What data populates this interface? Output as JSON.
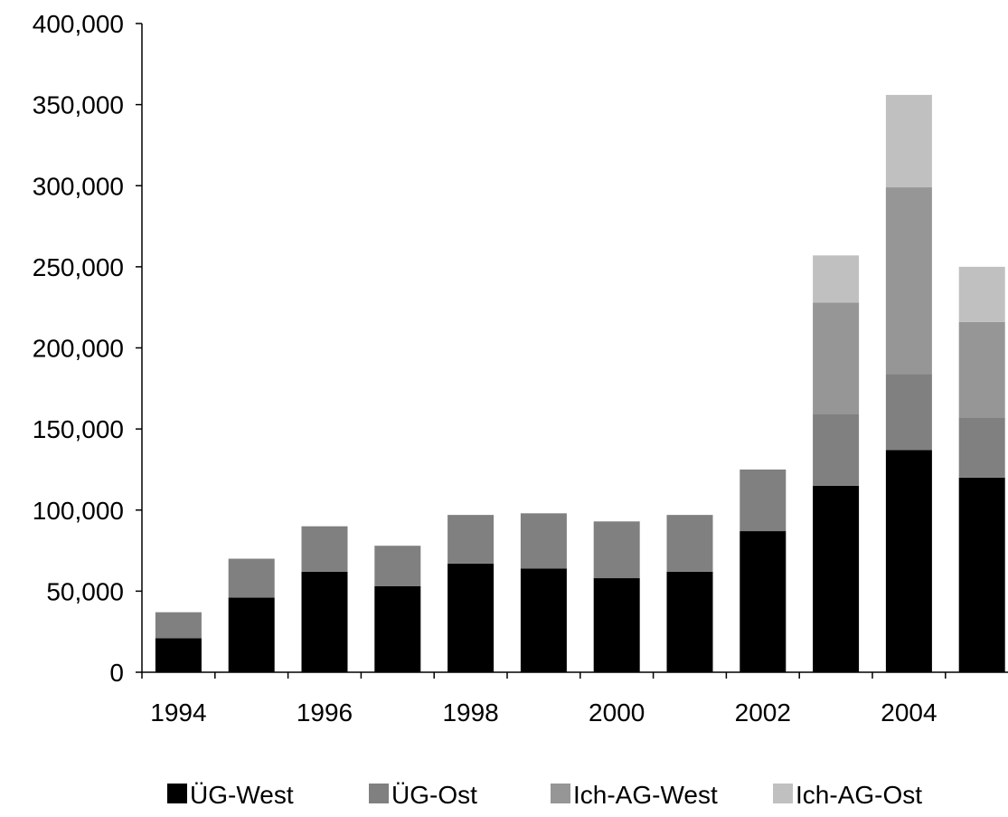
{
  "chart_data": {
    "type": "bar",
    "stacked": true,
    "title": "",
    "xlabel": "",
    "ylabel": "",
    "ylim": [
      0,
      400000
    ],
    "y_ticks": [
      0,
      50000,
      100000,
      150000,
      200000,
      250000,
      300000,
      350000,
      400000
    ],
    "y_tick_labels": [
      "0",
      "50,000",
      "100,000",
      "150,000",
      "200,000",
      "250,000",
      "300,000",
      "350,000",
      "400,000"
    ],
    "categories": [
      "1994",
      "1995",
      "1996",
      "1997",
      "1998",
      "1999",
      "2000",
      "2001",
      "2002",
      "2003",
      "2004",
      "2005"
    ],
    "x_tick_labels": [
      "1994",
      "",
      "1996",
      "",
      "1998",
      "",
      "2000",
      "",
      "2002",
      "",
      "2004",
      ""
    ],
    "grid": false,
    "legend_position": "bottom",
    "series": [
      {
        "name": "ÜG-West",
        "color": "#000000",
        "values": [
          21000,
          46000,
          62000,
          53000,
          67000,
          64000,
          58000,
          62000,
          87000,
          115000,
          137000,
          120000
        ]
      },
      {
        "name": "ÜG-Ost",
        "color": "#808080",
        "values": [
          16000,
          24000,
          28000,
          25000,
          30000,
          34000,
          35000,
          35000,
          38000,
          44000,
          47000,
          37000
        ]
      },
      {
        "name": "Ich-AG-West",
        "color": "#969696",
        "values": [
          0,
          0,
          0,
          0,
          0,
          0,
          0,
          0,
          0,
          69000,
          115000,
          59000
        ]
      },
      {
        "name": "Ich-AG-Ost",
        "color": "#c0c0c0",
        "values": [
          0,
          0,
          0,
          0,
          0,
          0,
          0,
          0,
          0,
          29000,
          57000,
          34000
        ]
      }
    ]
  }
}
